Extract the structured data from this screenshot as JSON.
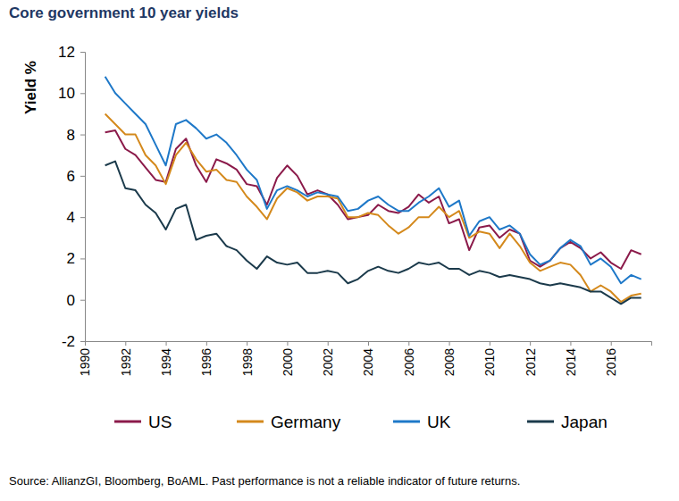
{
  "chart_data": {
    "type": "line",
    "title": "Core government 10 year yields",
    "y_label": "Yield %",
    "source": "Source: AllianzGI, Bloomberg, BoAML. Past performance is not a reliable indicator of future returns.",
    "x": [
      1991.0,
      1991.5,
      1992.0,
      1992.5,
      1993.0,
      1993.5,
      1994.0,
      1994.5,
      1995.0,
      1995.5,
      1996.0,
      1996.5,
      1997.0,
      1997.5,
      1998.0,
      1998.5,
      1999.0,
      1999.5,
      2000.0,
      2000.5,
      2001.0,
      2001.5,
      2002.0,
      2002.5,
      2003.0,
      2003.5,
      2004.0,
      2004.5,
      2005.0,
      2005.5,
      2006.0,
      2006.5,
      2007.0,
      2007.5,
      2008.0,
      2008.5,
      2009.0,
      2009.5,
      2010.0,
      2010.5,
      2011.0,
      2011.5,
      2012.0,
      2012.5,
      2013.0,
      2013.5,
      2014.0,
      2014.5,
      2015.0,
      2015.5,
      2016.0,
      2016.5,
      2017.0,
      2017.5
    ],
    "series": [
      {
        "name": "US",
        "color": "#8b1a4a",
        "values": [
          8.1,
          8.2,
          7.3,
          7.0,
          6.4,
          5.8,
          5.7,
          7.3,
          7.8,
          6.5,
          5.7,
          6.8,
          6.6,
          6.3,
          5.6,
          5.5,
          4.6,
          5.9,
          6.5,
          6.0,
          5.1,
          5.3,
          5.1,
          4.6,
          3.9,
          4.0,
          4.1,
          4.6,
          4.3,
          4.2,
          4.5,
          5.1,
          4.7,
          5.0,
          3.7,
          3.9,
          2.4,
          3.5,
          3.6,
          3.0,
          3.4,
          3.2,
          1.9,
          1.6,
          1.9,
          2.5,
          2.8,
          2.5,
          2.0,
          2.3,
          1.8,
          1.5,
          2.4,
          2.2
        ]
      },
      {
        "name": "Germany",
        "color": "#d4891c",
        "values": [
          9.0,
          8.5,
          8.0,
          8.0,
          7.0,
          6.5,
          5.6,
          7.0,
          7.6,
          6.8,
          6.2,
          6.3,
          5.8,
          5.7,
          5.0,
          4.5,
          3.9,
          4.9,
          5.4,
          5.2,
          4.8,
          5.0,
          5.0,
          4.9,
          4.0,
          4.0,
          4.2,
          4.1,
          3.6,
          3.2,
          3.5,
          4.0,
          4.0,
          4.5,
          4.0,
          4.3,
          3.0,
          3.3,
          3.2,
          2.5,
          3.2,
          2.6,
          1.8,
          1.4,
          1.6,
          1.8,
          1.7,
          1.2,
          0.4,
          0.7,
          0.4,
          -0.1,
          0.2,
          0.3
        ]
      },
      {
        "name": "UK",
        "color": "#1e78c8",
        "values": [
          10.8,
          10.0,
          9.5,
          9.0,
          8.5,
          7.5,
          6.5,
          8.5,
          8.7,
          8.3,
          7.8,
          8.0,
          7.6,
          7.0,
          6.3,
          5.8,
          4.4,
          5.3,
          5.5,
          5.3,
          5.0,
          5.2,
          5.1,
          5.0,
          4.3,
          4.4,
          4.8,
          5.0,
          4.6,
          4.3,
          4.3,
          4.7,
          5.0,
          5.4,
          4.5,
          4.8,
          3.1,
          3.8,
          4.0,
          3.4,
          3.6,
          3.2,
          2.2,
          1.7,
          1.9,
          2.5,
          2.9,
          2.6,
          1.7,
          2.0,
          1.6,
          0.8,
          1.2,
          1.0
        ]
      },
      {
        "name": "Japan",
        "color": "#1b3a4b",
        "values": [
          6.5,
          6.7,
          5.4,
          5.3,
          4.6,
          4.2,
          3.4,
          4.4,
          4.6,
          2.9,
          3.1,
          3.2,
          2.6,
          2.4,
          1.9,
          1.5,
          2.1,
          1.8,
          1.7,
          1.8,
          1.3,
          1.3,
          1.4,
          1.3,
          0.8,
          1.0,
          1.4,
          1.6,
          1.4,
          1.3,
          1.5,
          1.8,
          1.7,
          1.8,
          1.5,
          1.5,
          1.2,
          1.4,
          1.3,
          1.1,
          1.2,
          1.1,
          1.0,
          0.8,
          0.7,
          0.8,
          0.7,
          0.6,
          0.4,
          0.4,
          0.1,
          -0.2,
          0.1,
          0.1
        ]
      }
    ],
    "xlim": [
      1990,
      2018
    ],
    "xticks": [
      1990,
      1992,
      1994,
      1996,
      1998,
      2000,
      2002,
      2004,
      2006,
      2008,
      2010,
      2012,
      2014,
      2016
    ],
    "ylim": [
      -2,
      12
    ],
    "yticks": [
      -2,
      0,
      2,
      4,
      6,
      8,
      10,
      12
    ],
    "grid": false,
    "legend": "bottom"
  }
}
